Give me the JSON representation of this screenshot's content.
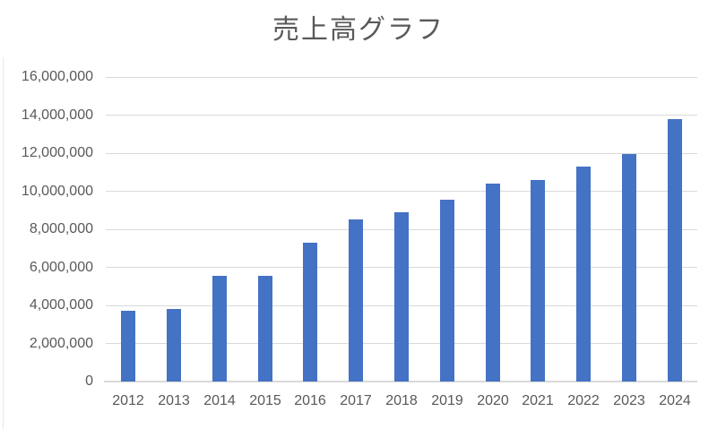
{
  "page": {
    "background": "#FFFFFF"
  },
  "chart_data": {
    "type": "bar",
    "title": "売上高グラフ",
    "categories": [
      "2012",
      "2013",
      "2014",
      "2015",
      "2016",
      "2017",
      "2018",
      "2019",
      "2020",
      "2021",
      "2022",
      "2023",
      "2024"
    ],
    "values": [
      3700000,
      3800000,
      5550000,
      5550000,
      7300000,
      8500000,
      8900000,
      9550000,
      10400000,
      10600000,
      11300000,
      11950000,
      13800000
    ],
    "xlabel": "",
    "ylabel": "",
    "ylim": [
      0,
      16000000
    ],
    "ytick_interval": 2000000,
    "ytick_labels": [
      "0",
      "2,000,000",
      "4,000,000",
      "6,000,000",
      "8,000,000",
      "10,000,000",
      "12,000,000",
      "14,000,000",
      "16,000,000"
    ],
    "grid": "horizontal",
    "legend": "none",
    "colors": {
      "bar": "#4472C4",
      "gridline": "#D9D9D9",
      "axis_line": "#D9D9D9",
      "tick_label": "#595959",
      "title": "#595959"
    }
  }
}
